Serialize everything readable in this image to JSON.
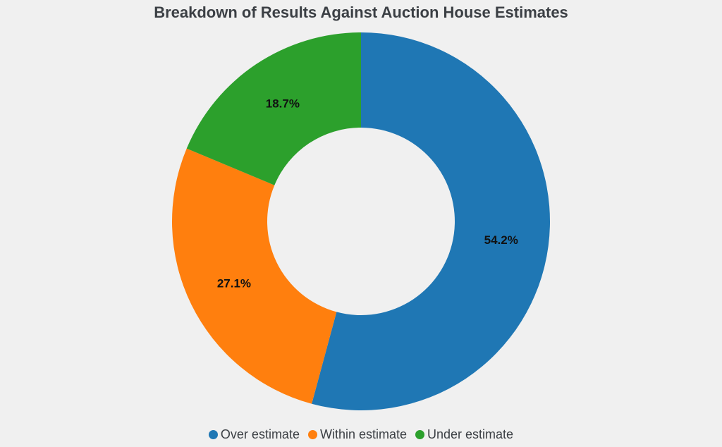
{
  "chart_data": {
    "type": "pie",
    "donut": true,
    "title": "Breakdown of Results Against Auction House Estimates",
    "categories": [
      "Over estimate",
      "Within estimate",
      "Under estimate"
    ],
    "values": [
      54.2,
      27.1,
      18.7
    ],
    "labels": [
      "54.2%",
      "27.1%",
      "18.7%"
    ],
    "colors": [
      "#1f77b4",
      "#ff7f0e",
      "#2ca02c"
    ],
    "start_angle": "12 o'clock",
    "direction": "clockwise",
    "legend_position": "bottom-center"
  }
}
